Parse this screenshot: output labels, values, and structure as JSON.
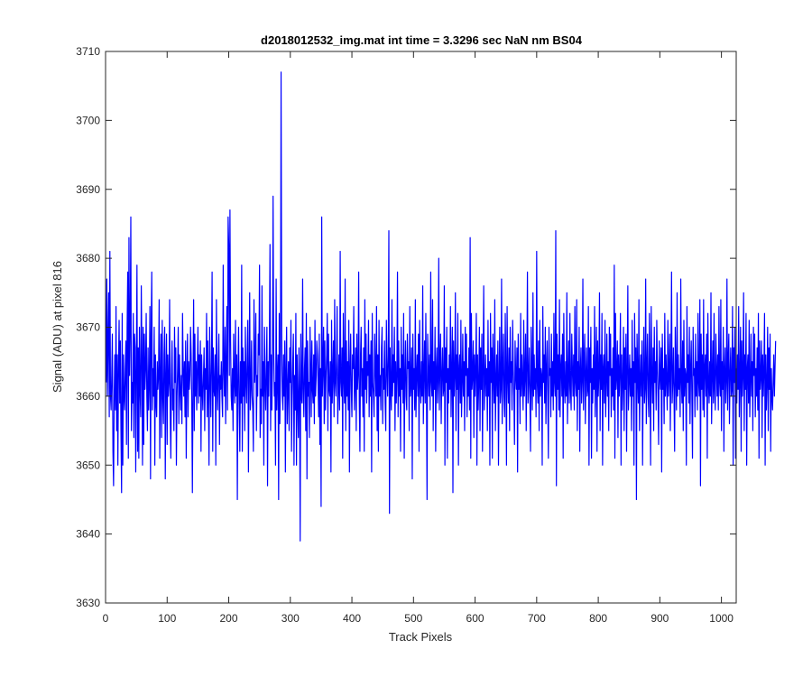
{
  "chart_data": {
    "type": "line",
    "title": "d2018012532_img.mat int time = 3.3296 sec  NaN nm BS04",
    "xlabel": "Track Pixels",
    "ylabel": "Signal (ADU) at pixel 816",
    "xlim": [
      0,
      1024
    ],
    "ylim": [
      3630,
      3710
    ],
    "xticks": [
      "0",
      "100",
      "200",
      "300",
      "400",
      "500",
      "600",
      "700",
      "800",
      "900",
      "1000"
    ],
    "yticks": [
      "3630",
      "3640",
      "3650",
      "3660",
      "3670",
      "3680",
      "3690",
      "3700",
      "3710"
    ],
    "grid": false,
    "line_color": "#0000ff",
    "series": [
      {
        "x_start": 1,
        "x_step": 1,
        "values": [
          3662,
          3677,
          3660,
          3668,
          3675,
          3657,
          3681,
          3660,
          3658,
          3663,
          3669,
          3652,
          3647,
          3660,
          3666,
          3658,
          3673,
          3655,
          3666,
          3650,
          3664,
          3671,
          3659,
          3668,
          3655,
          3646,
          3672,
          3650,
          3666,
          3660,
          3658,
          3664,
          3668,
          3653,
          3670,
          3678,
          3651,
          3683,
          3663,
          3670,
          3686,
          3655,
          3662,
          3659,
          3672,
          3654,
          3669,
          3667,
          3649,
          3664,
          3679,
          3652,
          3667,
          3651,
          3670,
          3661,
          3657,
          3676,
          3666,
          3650,
          3670,
          3653,
          3669,
          3661,
          3664,
          3672,
          3660,
          3655,
          3667,
          3658,
          3662,
          3673,
          3648,
          3669,
          3678,
          3658,
          3664,
          3660,
          3670,
          3650,
          3666,
          3659,
          3657,
          3665,
          3661,
          3663,
          3674,
          3651,
          3663,
          3669,
          3654,
          3671,
          3660,
          3656,
          3666,
          3670,
          3648,
          3663,
          3669,
          3653,
          3666,
          3660,
          3662,
          3674,
          3657,
          3651,
          3663,
          3668,
          3658,
          3661,
          3655,
          3670,
          3662,
          3667,
          3650,
          3660,
          3664,
          3670,
          3656,
          3666,
          3661,
          3658,
          3663,
          3656,
          3672,
          3664,
          3660,
          3665,
          3657,
          3668,
          3651,
          3663,
          3669,
          3657,
          3665,
          3661,
          3663,
          3670,
          3666,
          3659,
          3646,
          3662,
          3674,
          3655,
          3669,
          3660,
          3665,
          3658,
          3664,
          3670,
          3659,
          3666,
          3660,
          3668,
          3652,
          3666,
          3661,
          3658,
          3663,
          3667,
          3655,
          3664,
          3661,
          3672,
          3657,
          3668,
          3660,
          3650,
          3670,
          3663,
          3657,
          3665,
          3678,
          3652,
          3667,
          3661,
          3660,
          3666,
          3650,
          3674,
          3662,
          3658,
          3664,
          3669,
          3653,
          3663,
          3661,
          3665,
          3660,
          3657,
          3679,
          3664,
          3660,
          3670,
          3656,
          3665,
          3673,
          3658,
          3686,
          3682,
          3663,
          3687,
          3668,
          3660,
          3658,
          3664,
          3655,
          3669,
          3662,
          3659,
          3671,
          3660,
          3666,
          3645,
          3663,
          3670,
          3659,
          3652,
          3665,
          3659,
          3679,
          3652,
          3667,
          3660,
          3665,
          3655,
          3670,
          3662,
          3659,
          3666,
          3671,
          3649,
          3663,
          3675,
          3658,
          3661,
          3668,
          3660,
          3658,
          3652,
          3674,
          3662,
          3664,
          3672,
          3655,
          3663,
          3660,
          3669,
          3666,
          3679,
          3654,
          3661,
          3656,
          3676,
          3660,
          3665,
          3650,
          3670,
          3662,
          3658,
          3664,
          3670,
          3647,
          3665,
          3660,
          3668,
          3682,
          3655,
          3666,
          3658,
          3665,
          3689,
          3667,
          3660,
          3662,
          3650,
          3677,
          3658,
          3663,
          3666,
          3645,
          3672,
          3656,
          3664,
          3707,
          3669,
          3660,
          3658,
          3666,
          3660,
          3668,
          3649,
          3664,
          3670,
          3656,
          3661,
          3665,
          3655,
          3667,
          3662,
          3671,
          3652,
          3660,
          3665,
          3669,
          3650,
          3663,
          3658,
          3672,
          3650,
          3666,
          3659,
          3654,
          3667,
          3661,
          3639,
          3669,
          3660,
          3659,
          3677,
          3661,
          3657,
          3664,
          3667,
          3655,
          3672,
          3648,
          3668,
          3660,
          3662,
          3654,
          3670,
          3664,
          3657,
          3668,
          3661,
          3659,
          3666,
          3656,
          3671,
          3660,
          3663,
          3668,
          3666,
          3662,
          3657,
          3669,
          3653,
          3664,
          3644,
          3686,
          3660,
          3664,
          3670,
          3656,
          3668,
          3658,
          3663,
          3666,
          3672,
          3655,
          3669,
          3661,
          3660,
          3665,
          3649,
          3671,
          3659,
          3663,
          3668,
          3657,
          3674,
          3662,
          3660,
          3665,
          3673,
          3656,
          3661,
          3666,
          3658,
          3681,
          3662,
          3660,
          3667,
          3651,
          3672,
          3663,
          3659,
          3677,
          3655,
          3668,
          3660,
          3665,
          3658,
          3671,
          3649,
          3664,
          3669,
          3661,
          3657,
          3666,
          3664,
          3673,
          3658,
          3662,
          3667,
          3655,
          3669,
          3661,
          3663,
          3678,
          3659,
          3652,
          3666,
          3670,
          3660,
          3664,
          3657,
          3667,
          3652,
          3674,
          3661,
          3669,
          3659,
          3665,
          3663,
          3671,
          3657,
          3666,
          3660,
          3668,
          3649,
          3672,
          3662,
          3660,
          3657,
          3669,
          3664,
          3660,
          3673,
          3655,
          3666,
          3652,
          3671,
          3660,
          3663,
          3658,
          3667,
          3670,
          3656,
          3664,
          3661,
          3668,
          3659,
          3655,
          3671,
          3664,
          3660,
          3666,
          3684,
          3643,
          3667,
          3661,
          3658,
          3674,
          3660,
          3666,
          3662,
          3670,
          3655,
          3665,
          3659,
          3663,
          3678,
          3657,
          3668,
          3660,
          3664,
          3652,
          3670,
          3661,
          3666,
          3659,
          3672,
          3651,
          3663,
          3668,
          3660,
          3658,
          3669,
          3664,
          3665,
          3655,
          3673,
          3660,
          3662,
          3667,
          3648,
          3669,
          3661,
          3664,
          3658,
          3674,
          3657,
          3663,
          3666,
          3660,
          3669,
          3652,
          3671,
          3662,
          3659,
          3665,
          3660,
          3676,
          3656,
          3663,
          3668,
          3659,
          3672,
          3661,
          3645,
          3669,
          3664,
          3660,
          3666,
          3658,
          3678,
          3662,
          3660,
          3674,
          3655,
          3665,
          3661,
          3670,
          3652,
          3664,
          3667,
          3659,
          3662,
          3680,
          3658,
          3665,
          3669,
          3656,
          3663,
          3667,
          3660,
          3661,
          3676,
          3650,
          3667,
          3662,
          3670,
          3651,
          3664,
          3659,
          3666,
          3661,
          3673,
          3657,
          3663,
          3670,
          3646,
          3668,
          3660,
          3663,
          3675,
          3655,
          3666,
          3661,
          3672,
          3650,
          3664,
          3666,
          3659,
          3671,
          3657,
          3662,
          3669,
          3660,
          3665,
          3655,
          3670,
          3663,
          3669,
          3657,
          3664,
          3660,
          3667,
          3658,
          3683,
          3651,
          3672,
          3661,
          3663,
          3668,
          3654,
          3666,
          3660,
          3664,
          3672,
          3650,
          3666,
          3658,
          3662,
          3670,
          3655,
          3667,
          3661,
          3669,
          3652,
          3664,
          3676,
          3658,
          3662,
          3666,
          3660,
          3664,
          3655,
          3671,
          3660,
          3665,
          3650,
          3672,
          3662,
          3667,
          3651,
          3669,
          3663,
          3659,
          3674,
          3655,
          3662,
          3666,
          3660,
          3668,
          3650,
          3663,
          3670,
          3659,
          3661,
          3677,
          3656,
          3664,
          3669,
          3660,
          3657,
          3672,
          3664,
          3650,
          3673,
          3663,
          3659,
          3667,
          3655,
          3670,
          3662,
          3665,
          3658,
          3671,
          3664,
          3660,
          3653,
          3668,
          3663,
          3661,
          3667,
          3649,
          3669,
          3661,
          3664,
          3656,
          3672,
          3660,
          3666,
          3662,
          3658,
          3671,
          3660,
          3663,
          3669,
          3655,
          3664,
          3678,
          3659,
          3662,
          3667,
          3660,
          3652,
          3670,
          3663,
          3658,
          3675,
          3660,
          3666,
          3661,
          3664,
          3657,
          3681,
          3662,
          3659,
          3668,
          3655,
          3671,
          3660,
          3664,
          3663,
          3650,
          3673,
          3662,
          3666,
          3659,
          3670,
          3656,
          3664,
          3668,
          3660,
          3651,
          3670,
          3663,
          3664,
          3657,
          3669,
          3660,
          3665,
          3658,
          3672,
          3662,
          3660,
          3684,
          3647,
          3669,
          3661,
          3666,
          3658,
          3674,
          3657,
          3664,
          3666,
          3660,
          3669,
          3651,
          3672,
          3662,
          3659,
          3665,
          3660,
          3675,
          3656,
          3663,
          3668,
          3659,
          3672,
          3661,
          3658,
          3669,
          3664,
          3660,
          3666,
          3658,
          3673,
          3662,
          3660,
          3674,
          3655,
          3665,
          3661,
          3670,
          3652,
          3664,
          3667,
          3659,
          3662,
          3677,
          3658,
          3665,
          3669,
          3656,
          3663,
          3667,
          3660,
          3661,
          3673,
          3650,
          3667,
          3662,
          3670,
          3651,
          3664,
          3659,
          3666,
          3661,
          3673,
          3657,
          3663,
          3670,
          3652,
          3668,
          3660,
          3663,
          3675,
          3655,
          3666,
          3661,
          3672,
          3650,
          3664,
          3666,
          3659,
          3671,
          3657,
          3662,
          3669,
          3660,
          3665,
          3655,
          3670,
          3663,
          3669,
          3657,
          3664,
          3660,
          3667,
          3658,
          3679,
          3651,
          3672,
          3661,
          3663,
          3668,
          3654,
          3666,
          3660,
          3664,
          3672,
          3650,
          3666,
          3658,
          3662,
          3670,
          3655,
          3667,
          3661,
          3669,
          3652,
          3664,
          3676,
          3658,
          3662,
          3666,
          3660,
          3664,
          3655,
          3671,
          3660,
          3665,
          3650,
          3672,
          3662,
          3667,
          3645,
          3669,
          3663,
          3659,
          3674,
          3655,
          3662,
          3666,
          3660,
          3668,
          3650,
          3663,
          3670,
          3659,
          3661,
          3677,
          3656,
          3664,
          3669,
          3660,
          3657,
          3672,
          3664,
          3650,
          3673,
          3663,
          3659,
          3667,
          3655,
          3670,
          3662,
          3665,
          3658,
          3671,
          3664,
          3660,
          3653,
          3668,
          3663,
          3661,
          3667,
          3649,
          3669,
          3661,
          3664,
          3656,
          3672,
          3660,
          3666,
          3662,
          3658,
          3671,
          3660,
          3663,
          3669,
          3655,
          3664,
          3678,
          3659,
          3662,
          3667,
          3660,
          3652,
          3670,
          3663,
          3658,
          3675,
          3660,
          3666,
          3661,
          3664,
          3657,
          3677,
          3662,
          3659,
          3668,
          3655,
          3671,
          3660,
          3664,
          3663,
          3650,
          3673,
          3662,
          3666,
          3659,
          3670,
          3656,
          3664,
          3668,
          3660,
          3651,
          3670,
          3663,
          3664,
          3657,
          3669,
          3660,
          3665,
          3658,
          3672,
          3662,
          3660,
          3674,
          3647,
          3669,
          3661,
          3666,
          3658,
          3674,
          3657,
          3664,
          3666,
          3660,
          3669,
          3651,
          3672,
          3662,
          3659,
          3665,
          3660,
          3675,
          3656,
          3663,
          3668,
          3659,
          3672,
          3661,
          3658,
          3669,
          3664,
          3660,
          3666,
          3658,
          3673,
          3662,
          3660,
          3674,
          3655,
          3665,
          3661,
          3670,
          3652,
          3664,
          3667,
          3659,
          3662,
          3677,
          3658,
          3665,
          3669,
          3656,
          3663,
          3667,
          3660,
          3661,
          3673,
          3650,
          3667,
          3662,
          3670,
          3651,
          3664,
          3659,
          3666,
          3661,
          3673,
          3657,
          3663,
          3670,
          3652,
          3668,
          3660,
          3663,
          3675,
          3655,
          3666,
          3661,
          3672,
          3650,
          3664,
          3666,
          3659,
          3671,
          3657,
          3662,
          3669,
          3660,
          3665,
          3655,
          3670,
          3663,
          3669,
          3657,
          3664,
          3660,
          3667,
          3658,
          3672,
          3651,
          3668,
          3661,
          3663,
          3668,
          3654,
          3666,
          3660,
          3664,
          3672,
          3650,
          3666,
          3658,
          3662,
          3670,
          3655,
          3667,
          3661,
          3669,
          3652,
          3664,
          3660,
          3658,
          3662,
          3666,
          3660,
          3664,
          3668
        ]
      }
    ]
  }
}
